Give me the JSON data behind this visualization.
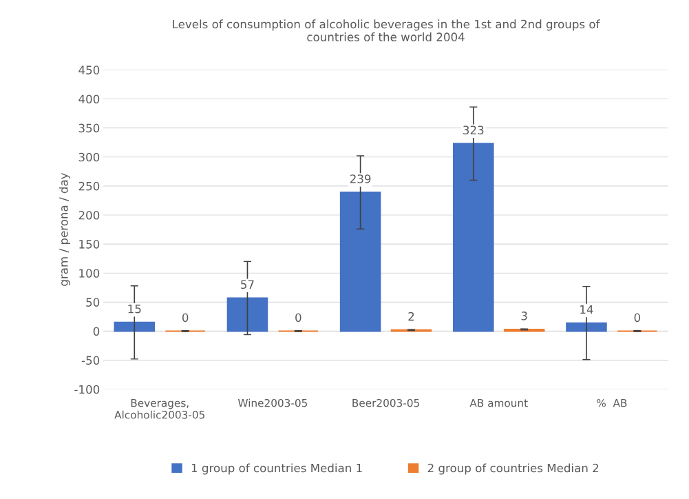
{
  "chart_data": {
    "type": "bar",
    "title": "Levels of consumption of alcoholic beverages in the 1st and 2nd groups of\ncountries of the world 2004",
    "ylabel": "gram / perona / day",
    "categories": [
      "Beverages,\nAlcoholic2003-05",
      "Wine2003-05",
      "Beer2003-05",
      "AB amount",
      "%  AB"
    ],
    "series": [
      {
        "name": "1 group of countries Median 1",
        "color": "#4472c4",
        "values": [
          15,
          57,
          239,
          323,
          14
        ],
        "errors": [
          63,
          63,
          63,
          63,
          63
        ]
      },
      {
        "name": "2 group of countries Median 2",
        "color": "#ed7d31",
        "values": [
          0,
          0,
          2,
          3,
          0
        ],
        "errors": [
          1,
          1,
          1,
          1,
          1
        ]
      }
    ],
    "ylim": [
      -100,
      450
    ],
    "yticks": [
      -100,
      -50,
      0,
      50,
      100,
      150,
      200,
      250,
      300,
      350,
      400,
      450
    ],
    "grid": "y",
    "legend": "bottom",
    "data_labels": true
  }
}
